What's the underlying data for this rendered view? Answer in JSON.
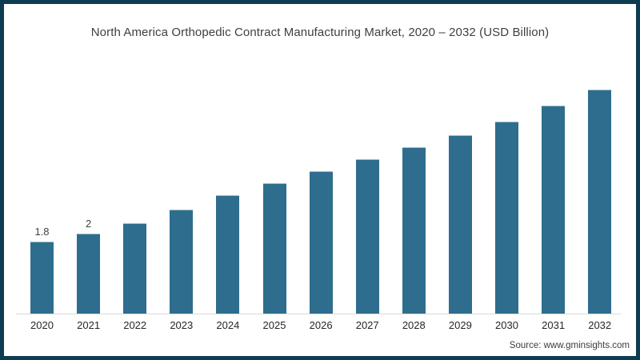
{
  "title": "North America Orthopedic Contract Manufacturing Market, 2020 – 2032 (USD Billion)",
  "source": "Source: www.gminsights.com",
  "colors": {
    "bar_fill": "#2e6d8d",
    "frame_border": "#0e3c52",
    "axis_line": "#d9d9d9",
    "title_text": "#3f3f3f",
    "tick_text": "#262626"
  },
  "chart_data": {
    "type": "bar",
    "title": "North America Orthopedic Contract Manufacturing Market, 2020 – 2032 (USD Billion)",
    "unit": "USD Billion",
    "categories": [
      "2020",
      "2021",
      "2022",
      "2023",
      "2024",
      "2025",
      "2026",
      "2027",
      "2028",
      "2029",
      "2030",
      "2031",
      "2032"
    ],
    "values": [
      1.8,
      2.0,
      2.25,
      2.6,
      2.95,
      3.25,
      3.55,
      3.85,
      4.15,
      4.45,
      4.8,
      5.2,
      5.6
    ],
    "data_labels": [
      "1.8",
      "2",
      "",
      "",
      "",
      "",
      "",
      "",
      "",
      "",
      "",
      "",
      ""
    ],
    "xlabel": "",
    "ylabel": "",
    "ylim": [
      0,
      6
    ],
    "grid": false,
    "legend": false,
    "y_axis_visible": false,
    "baseline_visible": true
  }
}
